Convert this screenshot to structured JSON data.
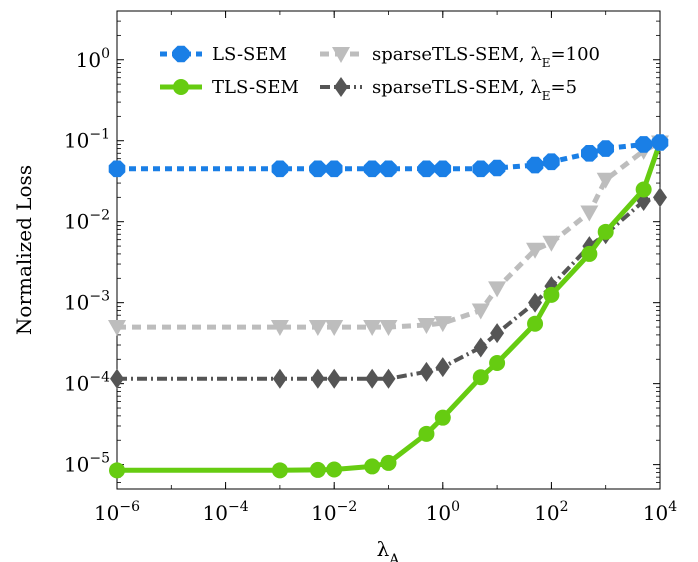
{
  "chart_data": {
    "type": "line",
    "xscale": "log",
    "yscale": "log",
    "xlim": [
      1e-06,
      10000.0
    ],
    "ylim": [
      5e-06,
      4
    ],
    "xlabel": "λ_A",
    "ylabel": "Normalized Loss",
    "grid": false,
    "legend_position": "top",
    "x_ticks": [
      {
        "value": 1e-06,
        "base": "10",
        "exp": "−6"
      },
      {
        "value": 0.0001,
        "base": "10",
        "exp": "−4"
      },
      {
        "value": 0.01,
        "base": "10",
        "exp": "−2"
      },
      {
        "value": 1,
        "base": "10",
        "exp": "0"
      },
      {
        "value": 100,
        "base": "10",
        "exp": "2"
      },
      {
        "value": 10000,
        "base": "10",
        "exp": "4"
      }
    ],
    "y_ticks": [
      {
        "value": 1e-05,
        "base": "10",
        "exp": "−5"
      },
      {
        "value": 0.0001,
        "base": "10",
        "exp": "−4"
      },
      {
        "value": 0.001,
        "base": "10",
        "exp": "−3"
      },
      {
        "value": 0.01,
        "base": "10",
        "exp": "−2"
      },
      {
        "value": 0.1,
        "base": "10",
        "exp": "−1"
      },
      {
        "value": 1,
        "base": "10",
        "exp": "0"
      }
    ],
    "series": [
      {
        "name": "LS-SEM",
        "legend_main": "LS-SEM",
        "legend_sub": "",
        "legend_tail": "",
        "color": "#1a7fe6",
        "marker": "octagon",
        "dash": "7,5",
        "width": 5,
        "x": [
          1e-06,
          0.001,
          0.005,
          0.01,
          0.05,
          0.1,
          0.5,
          1,
          5,
          10,
          50,
          100,
          500,
          1000,
          5000,
          10000
        ],
        "y": [
          0.045,
          0.045,
          0.045,
          0.045,
          0.045,
          0.045,
          0.045,
          0.045,
          0.045,
          0.046,
          0.05,
          0.055,
          0.07,
          0.08,
          0.09,
          0.095
        ]
      },
      {
        "name": "TLS-SEM",
        "legend_main": "TLS-SEM",
        "legend_sub": "",
        "legend_tail": "",
        "color": "#66cc11",
        "marker": "circle",
        "dash": "",
        "width": 5,
        "x": [
          1e-06,
          0.001,
          0.005,
          0.01,
          0.05,
          0.1,
          0.5,
          1,
          5,
          10,
          50,
          100,
          500,
          1000,
          5000,
          10000
        ],
        "y": [
          8.5e-06,
          8.5e-06,
          8.6e-06,
          8.7e-06,
          9.5e-06,
          1.05e-05,
          2.4e-05,
          3.8e-05,
          0.00012,
          0.00018,
          0.00055,
          0.00125,
          0.004,
          0.0075,
          0.025,
          0.095
        ]
      },
      {
        "name": "sparseTLS-SEM, λE=100",
        "legend_main": "sparseTLS-SEM, λ",
        "legend_sub": "E",
        "legend_tail": "=100",
        "color": "#bdbdbd",
        "marker": "triangle-down",
        "dash": "9,6",
        "width": 5,
        "x": [
          1e-06,
          0.001,
          0.005,
          0.01,
          0.05,
          0.1,
          0.5,
          1,
          5,
          10,
          50,
          100,
          500,
          1000,
          5000,
          10000
        ],
        "y": [
          0.0005,
          0.0005,
          0.0005,
          0.0005,
          0.0005,
          0.0005,
          0.00053,
          0.00056,
          0.0008,
          0.0015,
          0.0045,
          0.0055,
          0.013,
          0.033,
          0.075,
          0.095
        ]
      },
      {
        "name": "sparseTLS-SEM, λE=5",
        "legend_main": "sparseTLS-SEM, λ",
        "legend_sub": "E",
        "legend_tail": "=5",
        "color": "#555555",
        "marker": "diamond",
        "dash": "10,4,2,4",
        "width": 4,
        "x": [
          1e-06,
          0.001,
          0.005,
          0.01,
          0.05,
          0.1,
          0.5,
          1,
          5,
          10,
          50,
          100,
          500,
          1000,
          5000,
          10000
        ],
        "y": [
          0.000115,
          0.000115,
          0.000115,
          0.000115,
          0.000115,
          0.000115,
          0.00014,
          0.00016,
          0.00028,
          0.00042,
          0.001,
          0.0016,
          0.005,
          0.007,
          0.018,
          0.02
        ]
      }
    ]
  }
}
